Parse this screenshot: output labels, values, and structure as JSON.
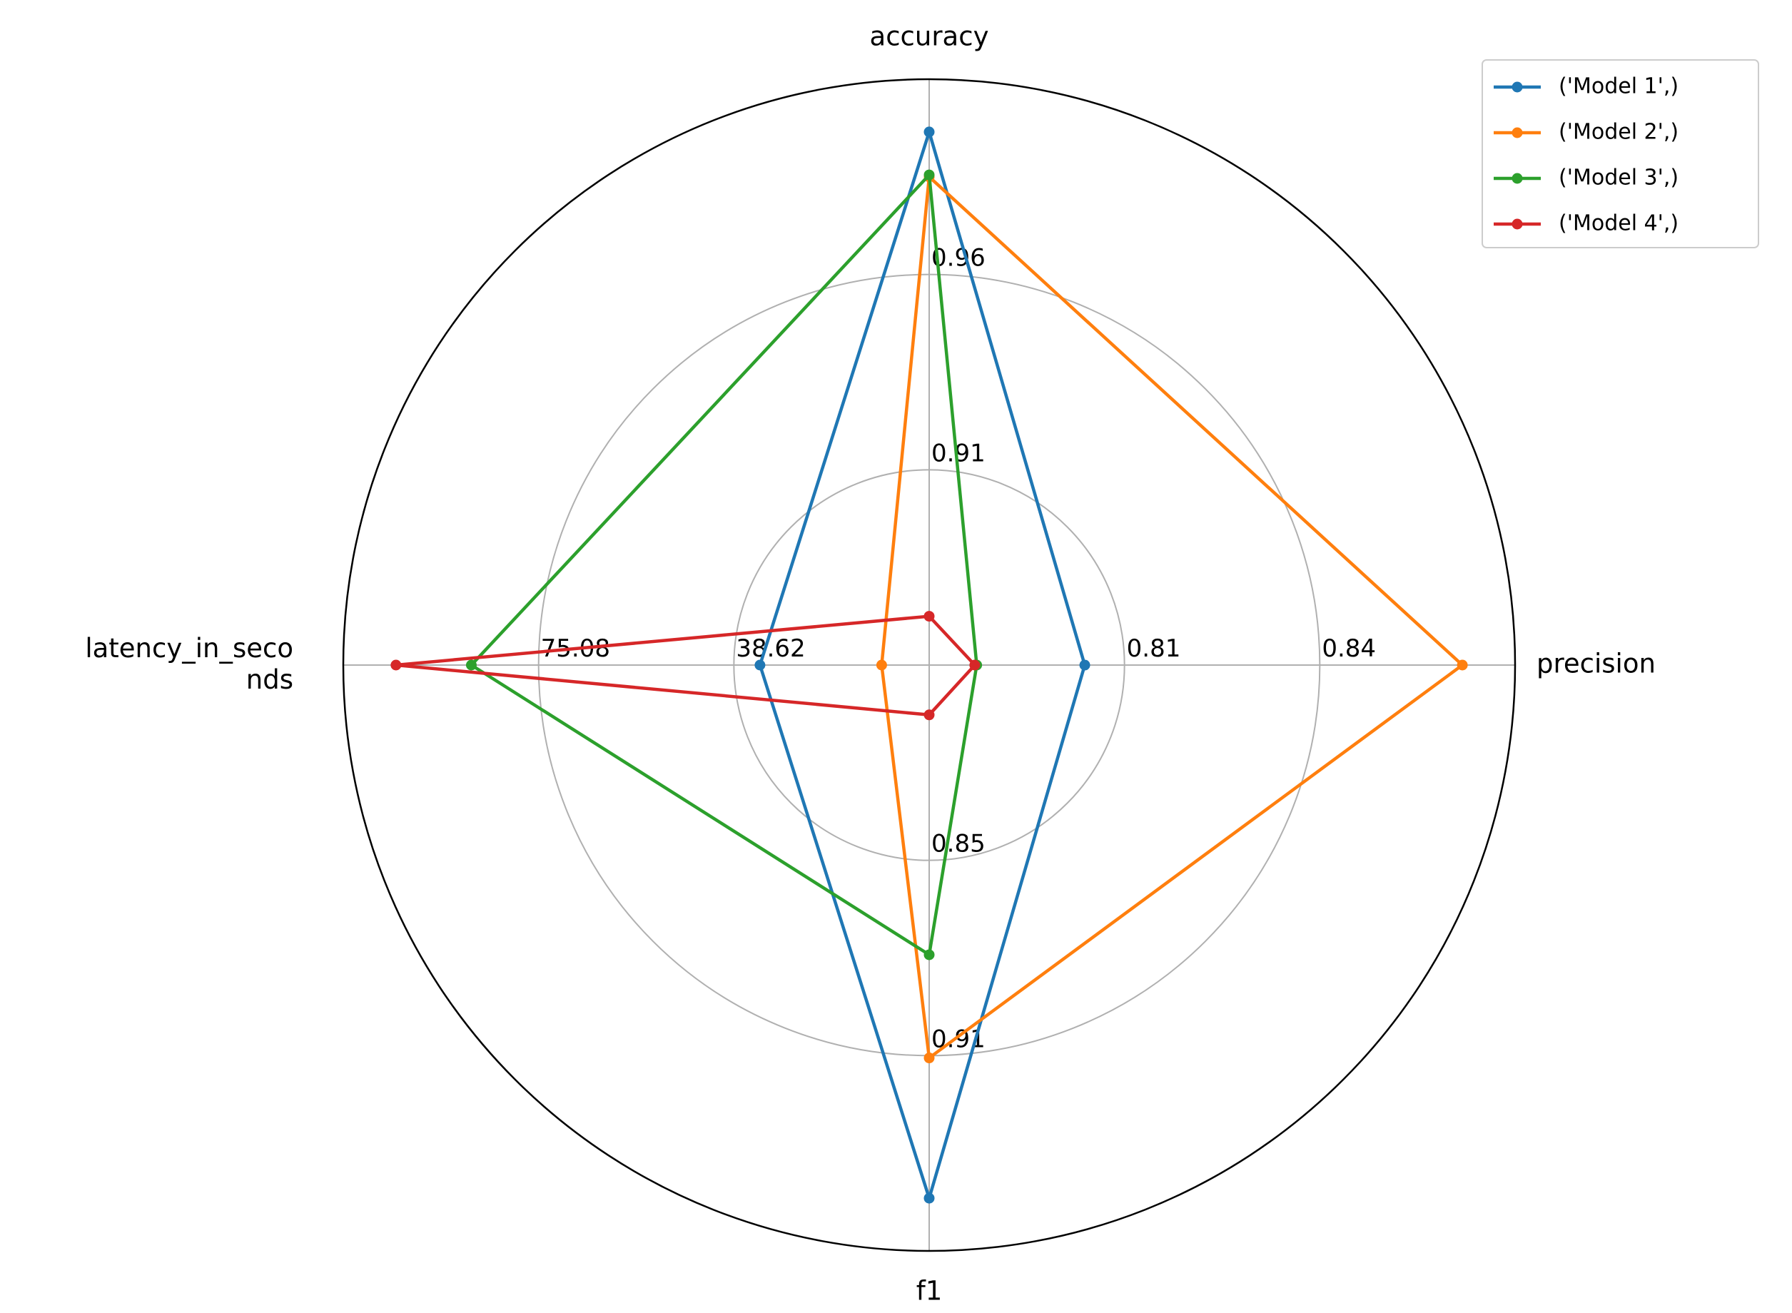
{
  "chart_data": {
    "type": "radar",
    "axes": [
      {
        "name": "accuracy",
        "lim": [
          0.86,
          1.01
        ],
        "ticks": [
          0.91,
          0.96
        ]
      },
      {
        "name": "precision",
        "lim": [
          0.78,
          0.87
        ],
        "ticks": [
          0.81,
          0.84
        ]
      },
      {
        "name": "f1",
        "lim": [
          0.79,
          0.97
        ],
        "ticks": [
          0.85,
          0.91
        ]
      },
      {
        "name": "latency_in_seconds",
        "lim": [
          2.16,
          111.54
        ],
        "ticks": [
          38.62,
          75.08
        ]
      }
    ],
    "series": [
      {
        "name": "('Model 1',)",
        "color": "#1f77b4",
        "values": [
          0.9965,
          0.8039,
          0.9538,
          33.75
        ]
      },
      {
        "name": "('Model 2',)",
        "color": "#ff7f0e",
        "values": [
          0.985,
          0.8619,
          0.9107,
          11.03
        ]
      },
      {
        "name": "('Model 3',)",
        "color": "#2ca02c",
        "values": [
          0.9855,
          0.7873,
          0.879,
          87.63
        ]
      },
      {
        "name": "('Model 4',)",
        "color": "#d62728",
        "values": [
          0.8725,
          0.787,
          0.8053,
          101.7
        ]
      }
    ],
    "grid": true,
    "legend": "upper right"
  }
}
